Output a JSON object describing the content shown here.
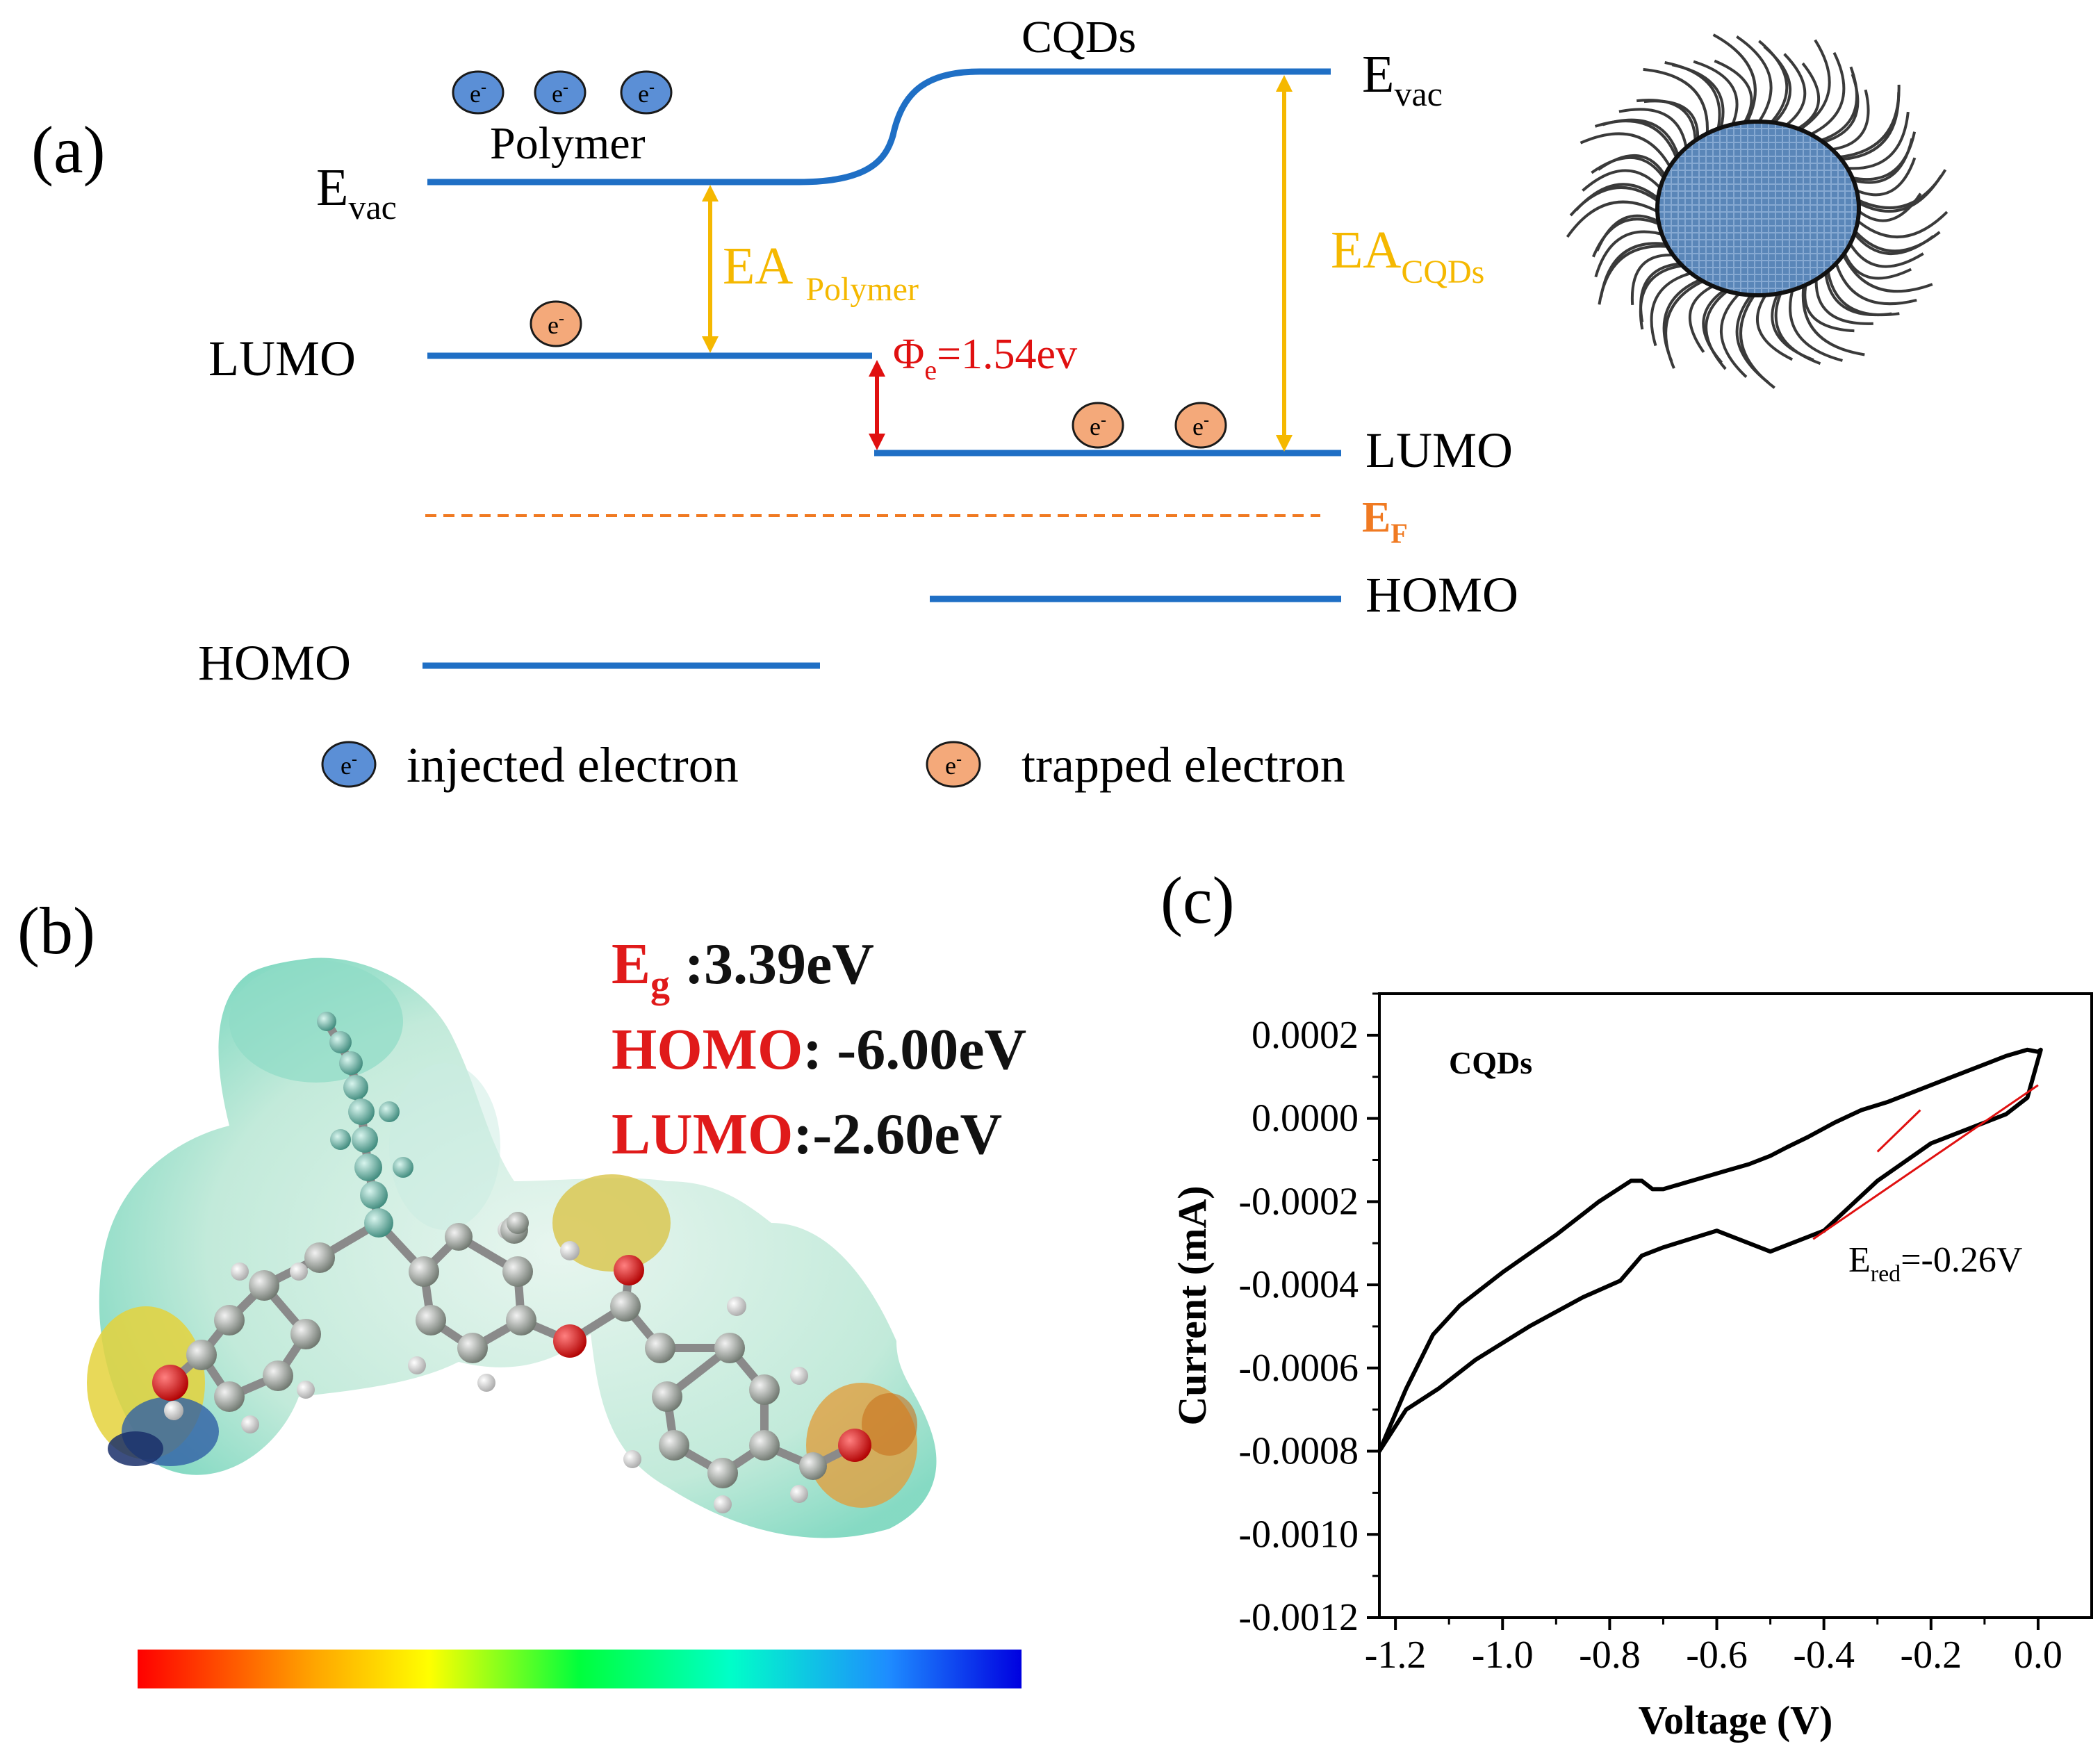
{
  "panel_a": {
    "label": "(a)",
    "cqds_title": "CQDs",
    "polymer_label": "Polymer",
    "evac_main": "E",
    "evac_sub": "vac",
    "lumo_label": "LUMO",
    "homo_label": "HOMO",
    "ea_polymer_main": "EA",
    "ea_polymer_sub": "Polymer",
    "ea_cqds_main": "EA",
    "ea_cqds_sub": "CQDs",
    "phi_main": "Φ",
    "phi_sub": "e",
    "phi_value": "=1.54ev",
    "ef_main": "E",
    "ef_sub": "F",
    "electron_symbol": "e",
    "electron_charge": "-",
    "legend_injected": "injected electron",
    "legend_trapped": "trapped electron",
    "colors": {
      "level": "#1f6fc5",
      "ea_arrow": "#f5b800",
      "phi_arrow": "#e01010",
      "fermi": "#f07a22",
      "injected": "#5b8fd6",
      "trapped": "#f4a97a"
    }
  },
  "panel_b": {
    "label": "(b)",
    "eg_key_main": "E",
    "eg_key_sub": "g",
    "eg_value": " :3.39eV",
    "homo_key": "HOMO",
    "homo_value": ": -6.00eV",
    "lumo_key": "LUMO",
    "lumo_value": ":-2.60eV",
    "colorbar_stops": [
      "#ff0000",
      "#ffa500",
      "#ffff00",
      "#00ff3c",
      "#00ffc8",
      "#1e8cff",
      "#0000e0"
    ]
  },
  "panel_c": {
    "label": "(c)",
    "series_label": "CQDs",
    "ered_main": "E",
    "ered_sub": "red",
    "ered_value": "=-0.26V",
    "chart_data": {
      "type": "line",
      "title": "",
      "xlabel": "Voltage (V)",
      "ylabel": "Current (mA)",
      "xlim": [
        -1.23,
        0.1
      ],
      "ylim": [
        -0.0012,
        0.0003
      ],
      "x_ticks": [
        "-1.2",
        "-1.0",
        "-0.8",
        "-0.6",
        "-0.4",
        "-0.2",
        "0.0"
      ],
      "y_ticks": [
        "0.0002",
        "0.0000",
        "-0.0002",
        "-0.0004",
        "-0.0006",
        "-0.0008",
        "-0.0010",
        "-0.0012"
      ],
      "series": [
        {
          "name": "CQDs",
          "x": [
            -1.23,
            -1.18,
            -1.13,
            -1.08,
            -1.0,
            -0.9,
            -0.82,
            -0.76,
            -0.74,
            -0.72,
            -0.7,
            -0.66,
            -0.62,
            -0.58,
            -0.54,
            -0.5,
            -0.47,
            -0.43,
            -0.38,
            -0.33,
            -0.28,
            -0.22,
            -0.16,
            -0.1,
            -0.06,
            -0.02,
            0.0,
            0.005,
            -0.02,
            -0.06,
            -0.12,
            -0.2,
            -0.3,
            -0.4,
            -0.5,
            -0.6,
            -0.7,
            -0.74,
            -0.78,
            -0.85,
            -0.95,
            -1.05,
            -1.12,
            -1.18,
            -1.23
          ],
          "y": [
            -0.0008,
            -0.00065,
            -0.00052,
            -0.00045,
            -0.00037,
            -0.00028,
            -0.0002,
            -0.00015,
            -0.00015,
            -0.00017,
            -0.00017,
            -0.000155,
            -0.00014,
            -0.000125,
            -0.00011,
            -9e-05,
            -7e-05,
            -4.5e-05,
            -1e-05,
            2e-05,
            4e-05,
            7e-05,
            0.0001,
            0.00013,
            0.00015,
            0.000165,
            0.00016,
            0.000165,
            5e-05,
            1e-05,
            -2e-05,
            -6e-05,
            -0.00015,
            -0.00027,
            -0.00032,
            -0.00027,
            -0.00031,
            -0.00033,
            -0.00039,
            -0.00043,
            -0.0005,
            -0.00058,
            -0.00065,
            -0.0007,
            -0.0008
          ]
        }
      ],
      "fit_lines": [
        {
          "x": [
            -0.42,
            0.0
          ],
          "y": [
            -0.00029,
            8e-05
          ]
        },
        {
          "x": [
            -0.3,
            -0.22
          ],
          "y": [
            -8e-05,
            2e-05
          ]
        }
      ]
    }
  }
}
